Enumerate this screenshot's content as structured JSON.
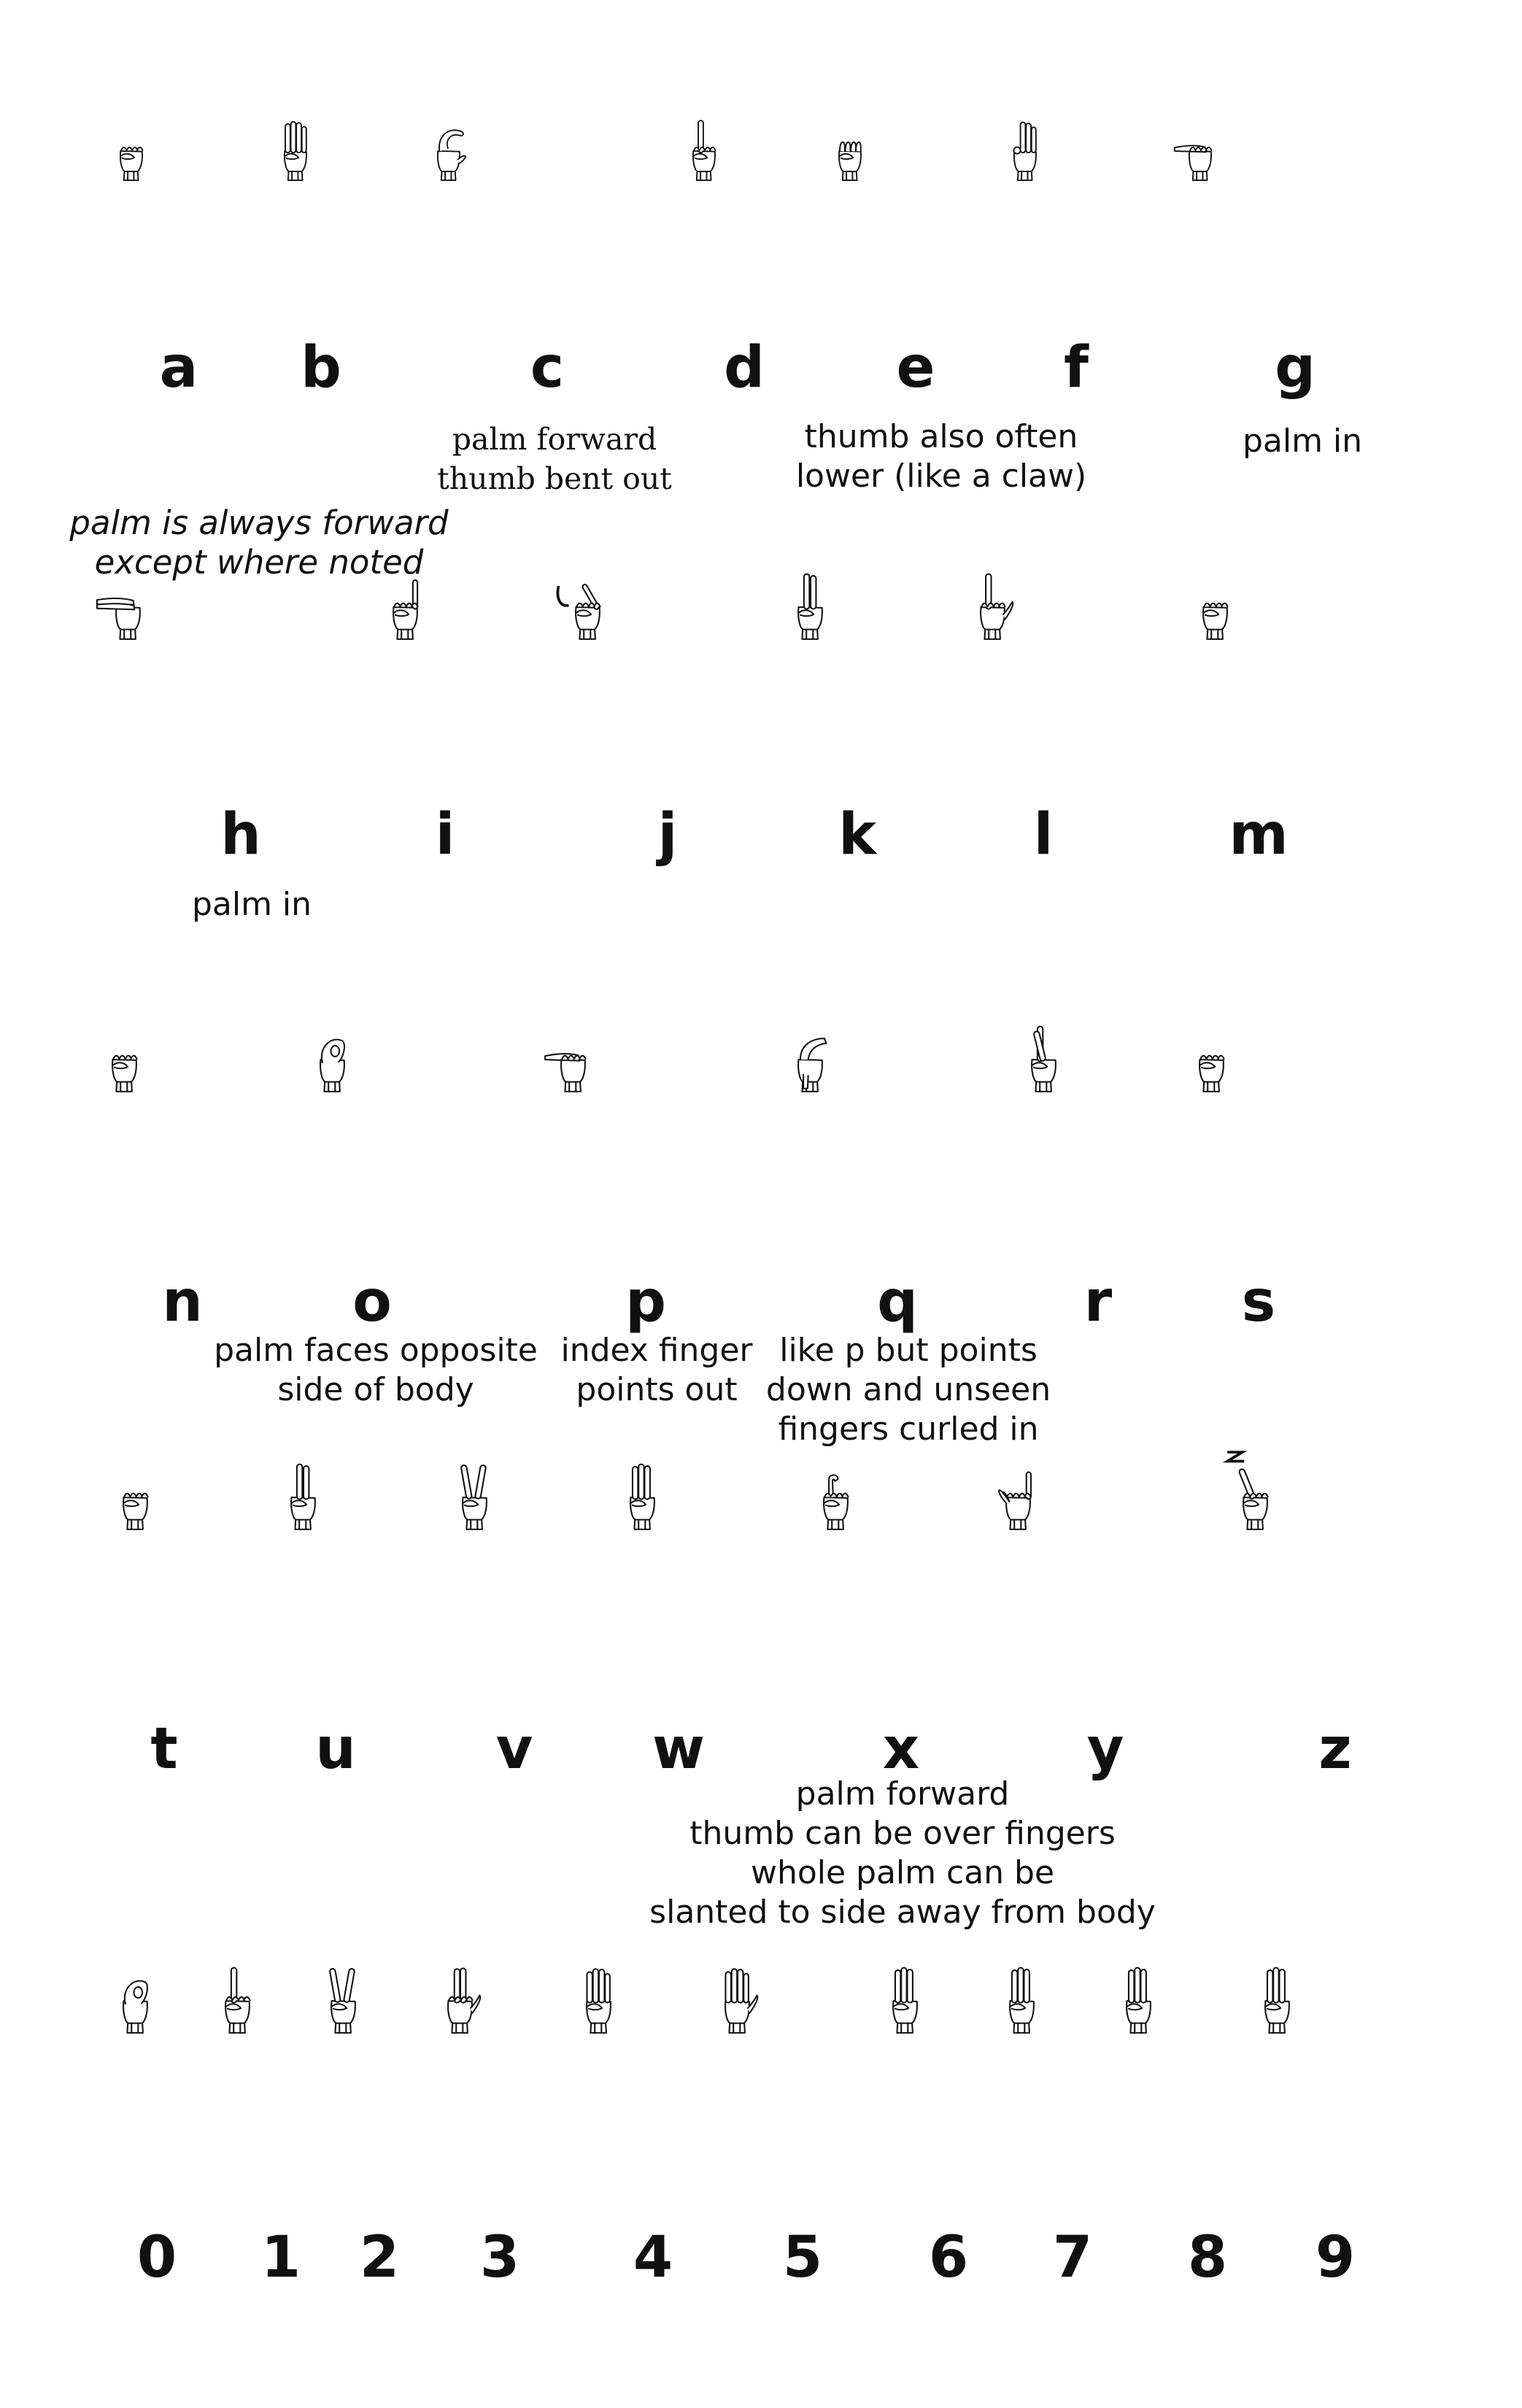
{
  "icons": {
    "hand": "hand-sign-icon",
    "z_trace": "zigzag-motion-icon",
    "j_trace": "hook-motion-icon"
  },
  "signs": [
    {
      "id": "a",
      "label": "a",
      "pose": "fist"
    },
    {
      "id": "b",
      "label": "b",
      "pose": "flat"
    },
    {
      "id": "c",
      "label": "c",
      "pose": "c"
    },
    {
      "id": "d",
      "label": "d",
      "pose": "one"
    },
    {
      "id": "e",
      "label": "e",
      "pose": "claw"
    },
    {
      "id": "f",
      "label": "f",
      "pose": "three-up"
    },
    {
      "id": "g",
      "label": "g",
      "pose": "point-side"
    },
    {
      "id": "h",
      "label": "h",
      "pose": "two-side"
    },
    {
      "id": "i",
      "label": "i",
      "pose": "pinky"
    },
    {
      "id": "j",
      "label": "j",
      "pose": "pinky-tilt"
    },
    {
      "id": "k",
      "label": "k",
      "pose": "two"
    },
    {
      "id": "l",
      "label": "l",
      "pose": "l"
    },
    {
      "id": "m",
      "label": "m",
      "pose": "fist-small"
    },
    {
      "id": "n",
      "label": "n",
      "pose": "fist-tilt"
    },
    {
      "id": "o",
      "label": "o",
      "pose": "o"
    },
    {
      "id": "p",
      "label": "p",
      "pose": "point-side"
    },
    {
      "id": "q",
      "label": "q",
      "pose": "point-down"
    },
    {
      "id": "r",
      "label": "r",
      "pose": "crossed"
    },
    {
      "id": "s",
      "label": "s",
      "pose": "fist"
    },
    {
      "id": "t",
      "label": "t",
      "pose": "fist"
    },
    {
      "id": "u",
      "label": "u",
      "pose": "two"
    },
    {
      "id": "v",
      "label": "v",
      "pose": "v"
    },
    {
      "id": "w",
      "label": "w",
      "pose": "three"
    },
    {
      "id": "x",
      "label": "x",
      "pose": "hook"
    },
    {
      "id": "y",
      "label": "y",
      "pose": "y"
    },
    {
      "id": "z",
      "label": "z",
      "pose": "one-tilt"
    },
    {
      "id": "0",
      "label": "0",
      "pose": "o"
    },
    {
      "id": "1",
      "label": "1",
      "pose": "one"
    },
    {
      "id": "2",
      "label": "2",
      "pose": "v"
    },
    {
      "id": "3",
      "label": "3",
      "pose": "three-thumb"
    },
    {
      "id": "4",
      "label": "4",
      "pose": "four"
    },
    {
      "id": "5",
      "label": "5",
      "pose": "five"
    },
    {
      "id": "6",
      "label": "6",
      "pose": "three"
    },
    {
      "id": "7",
      "label": "7",
      "pose": "three"
    },
    {
      "id": "8",
      "label": "8",
      "pose": "three"
    },
    {
      "id": "9",
      "label": "9",
      "pose": "three"
    }
  ],
  "notes": {
    "c": "palm forward\nthumb bent out",
    "e": "thumb also often\nlower (like a claw)",
    "g": "palm in",
    "general": "palm is always forward\nexcept where noted",
    "h": "palm in",
    "o": "palm faces opposite\nside of body",
    "p": "index finger\npoints out",
    "q": "like p but points\ndown and unseen\nfingers curled in",
    "x": "palm forward\nthumb can be over fingers\nwhole palm can be\nslanted to side away from body"
  }
}
